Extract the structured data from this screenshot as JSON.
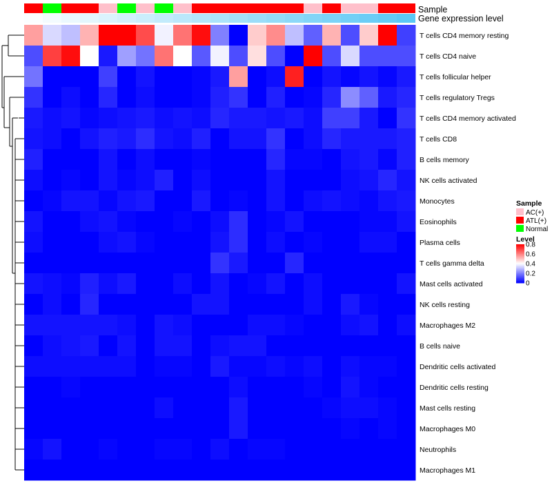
{
  "chart_data": {
    "type": "heatmap",
    "annotation_rows": [
      {
        "name": "Sample"
      },
      {
        "name": "Gene expression level"
      }
    ],
    "sample_groups": [
      "ATL(+)",
      "Normal",
      "ATL(+)",
      "ATL(+)",
      "AC(+)",
      "Normal",
      "AC(+)",
      "Normal",
      "AC(+)",
      "ATL(+)",
      "ATL(+)",
      "ATL(+)",
      "ATL(+)",
      "ATL(+)",
      "ATL(+)",
      "AC(+)",
      "ATL(+)",
      "AC(+)",
      "AC(+)",
      "ATL(+)",
      "ATL(+)"
    ],
    "expression_level": [
      0.02,
      0.06,
      0.1,
      0.14,
      0.18,
      0.22,
      0.26,
      0.3,
      0.34,
      0.38,
      0.42,
      0.46,
      0.5,
      0.54,
      0.58,
      0.62,
      0.66,
      0.7,
      0.74,
      0.78,
      0.82
    ],
    "rows": [
      "T cells CD4 memory resting",
      "T cells CD4 naive",
      "T cells follicular helper",
      "T cells regulatory  Tregs",
      "T cells CD4 memory activated",
      "T cells CD8",
      "B cells memory",
      "NK cells activated",
      "Monocytes",
      "Eosinophils",
      "Plasma cells",
      "T cells gamma delta",
      "Mast cells activated",
      "NK cells resting",
      "Macrophages M2",
      "B cells naive",
      "Dendritic cells activated",
      "Dendritic cells resting",
      "Mast cells resting",
      "Macrophages M0",
      "Neutrophils",
      "Macrophages M1"
    ],
    "values": [
      [
        0.55,
        0.34,
        0.3,
        0.52,
        0.8,
        0.8,
        0.68,
        0.38,
        0.62,
        0.78,
        0.2,
        0.0,
        0.48,
        0.58,
        0.3,
        0.15,
        0.52,
        0.12,
        0.48,
        0.8,
        0.1
      ],
      [
        0.12,
        0.7,
        0.78,
        0.4,
        0.04,
        0.25,
        0.18,
        0.62,
        0.4,
        0.14,
        0.38,
        0.12,
        0.45,
        0.12,
        0.0,
        0.8,
        0.12,
        0.34,
        0.12,
        0.12,
        0.12
      ],
      [
        0.18,
        0.0,
        0.0,
        0.0,
        0.1,
        0.0,
        0.03,
        0.0,
        0.0,
        0.01,
        0.04,
        0.55,
        0.0,
        0.02,
        0.75,
        0.0,
        0.03,
        0.01,
        0.03,
        0.01,
        0.04
      ],
      [
        0.08,
        0.0,
        0.02,
        0.0,
        0.06,
        0.0,
        0.02,
        0.0,
        0.0,
        0.01,
        0.05,
        0.08,
        0.0,
        0.05,
        0.0,
        0.01,
        0.06,
        0.22,
        0.15,
        0.04,
        0.06
      ],
      [
        0.04,
        0.02,
        0.03,
        0.01,
        0.02,
        0.03,
        0.04,
        0.02,
        0.03,
        0.02,
        0.06,
        0.04,
        0.04,
        0.03,
        0.04,
        0.02,
        0.1,
        0.1,
        0.04,
        0.0,
        0.08
      ],
      [
        0.03,
        0.02,
        0.0,
        0.03,
        0.05,
        0.04,
        0.07,
        0.03,
        0.02,
        0.05,
        0.0,
        0.03,
        0.03,
        0.08,
        0.0,
        0.02,
        0.06,
        0.04,
        0.04,
        0.04,
        0.05
      ],
      [
        0.05,
        0.0,
        0.0,
        0.0,
        0.03,
        0.0,
        0.02,
        0.0,
        0.0,
        0.01,
        0.0,
        0.0,
        0.0,
        0.06,
        0.01,
        0.01,
        0.0,
        0.03,
        0.04,
        0.01,
        0.05
      ],
      [
        0.02,
        0.0,
        0.01,
        0.0,
        0.03,
        0.01,
        0.02,
        0.05,
        0.0,
        0.02,
        0.0,
        0.0,
        0.0,
        0.03,
        0.0,
        0.0,
        0.0,
        0.02,
        0.03,
        0.06,
        0.03
      ],
      [
        0.0,
        0.01,
        0.03,
        0.03,
        0.01,
        0.03,
        0.04,
        0.0,
        0.0,
        0.04,
        0.0,
        0.01,
        0.0,
        0.03,
        0.0,
        0.02,
        0.03,
        0.02,
        0.01,
        0.03,
        0.04
      ],
      [
        0.03,
        0.0,
        0.0,
        0.02,
        0.03,
        0.01,
        0.0,
        0.0,
        0.01,
        0.0,
        0.02,
        0.07,
        0.0,
        0.01,
        0.03,
        0.0,
        0.0,
        0.0,
        0.01,
        0.01,
        0.03
      ],
      [
        0.02,
        0.0,
        0.0,
        0.0,
        0.02,
        0.03,
        0.01,
        0.0,
        0.0,
        0.0,
        0.03,
        0.07,
        0.0,
        0.02,
        0.0,
        0.01,
        0.0,
        0.0,
        0.02,
        0.02,
        0.0
      ],
      [
        0.0,
        0.0,
        0.0,
        0.0,
        0.0,
        0.0,
        0.0,
        0.0,
        0.0,
        0.0,
        0.08,
        0.04,
        0.0,
        0.0,
        0.06,
        0.0,
        0.0,
        0.0,
        0.0,
        0.0,
        0.0
      ],
      [
        0.03,
        0.02,
        0.01,
        0.05,
        0.02,
        0.04,
        0.0,
        0.0,
        0.02,
        0.0,
        0.03,
        0.0,
        0.01,
        0.03,
        0.0,
        0.02,
        0.0,
        0.0,
        0.0,
        0.0,
        0.03
      ],
      [
        0.0,
        0.02,
        0.0,
        0.06,
        0.0,
        0.0,
        0.0,
        0.0,
        0.0,
        0.03,
        0.03,
        0.0,
        0.0,
        0.0,
        0.0,
        0.02,
        0.0,
        0.04,
        0.01,
        0.0,
        0.0
      ],
      [
        0.03,
        0.03,
        0.03,
        0.03,
        0.03,
        0.02,
        0.0,
        0.03,
        0.02,
        0.0,
        0.0,
        0.0,
        0.02,
        0.02,
        0.01,
        0.0,
        0.0,
        0.02,
        0.03,
        0.0,
        0.02
      ],
      [
        0.0,
        0.02,
        0.03,
        0.04,
        0.0,
        0.03,
        0.0,
        0.03,
        0.03,
        0.0,
        0.02,
        0.03,
        0.03,
        0.0,
        0.0,
        0.0,
        0.0,
        0.0,
        0.0,
        0.0,
        0.0
      ],
      [
        0.02,
        0.02,
        0.02,
        0.02,
        0.02,
        0.02,
        0.0,
        0.01,
        0.01,
        0.0,
        0.04,
        0.01,
        0.01,
        0.02,
        0.01,
        0.02,
        0.0,
        0.02,
        0.01,
        0.01,
        0.0
      ],
      [
        0.0,
        0.0,
        0.01,
        0.0,
        0.0,
        0.0,
        0.0,
        0.0,
        0.0,
        0.0,
        0.0,
        0.02,
        0.0,
        0.0,
        0.0,
        0.01,
        0.0,
        0.03,
        0.01,
        0.0,
        0.0
      ],
      [
        0.0,
        0.0,
        0.0,
        0.0,
        0.0,
        0.0,
        0.0,
        0.02,
        0.0,
        0.0,
        0.0,
        0.04,
        0.0,
        0.0,
        0.0,
        0.0,
        0.01,
        0.02,
        0.02,
        0.01,
        0.0
      ],
      [
        0.0,
        0.0,
        0.0,
        0.0,
        0.0,
        0.0,
        0.0,
        0.0,
        0.0,
        0.0,
        0.0,
        0.04,
        0.0,
        0.0,
        0.0,
        0.0,
        0.0,
        0.01,
        0.0,
        0.01,
        0.0
      ],
      [
        0.01,
        0.03,
        0.0,
        0.0,
        0.01,
        0.0,
        0.0,
        0.01,
        0.01,
        0.0,
        0.02,
        0.0,
        0.01,
        0.01,
        0.0,
        0.0,
        0.0,
        0.0,
        0.0,
        0.0,
        0.0
      ],
      [
        0.0,
        0.0,
        0.0,
        0.0,
        0.0,
        0.0,
        0.0,
        0.0,
        0.0,
        0.0,
        0.0,
        0.0,
        0.0,
        0.0,
        0.0,
        0.0,
        0.0,
        0.0,
        0.0,
        0.0,
        0.0
      ]
    ],
    "legend": {
      "sample": {
        "title": "Sample",
        "entries": [
          {
            "label": "AC(+)",
            "color": "#FFC0CB"
          },
          {
            "label": "ATL(+)",
            "color": "#FF0000"
          },
          {
            "label": "Normal",
            "color": "#00FF00"
          }
        ]
      },
      "level": {
        "title": "Level",
        "range": [
          0,
          0.8
        ],
        "ticks": [
          "0.8",
          "0.6",
          "0.4",
          "0.2",
          "0"
        ],
        "tick_values": [
          0.8,
          0.6,
          0.4,
          0.2,
          0
        ]
      }
    },
    "color_scale": {
      "low": "#0000FF",
      "mid": "#FFFFFF",
      "high": "#FF0000",
      "midpoint": 0.4
    },
    "expression_scale": {
      "low": "#FFFFFF",
      "high": "#5BC8F5"
    },
    "dendrogram": "rows-left",
    "dendrogram_color": "#000000"
  }
}
